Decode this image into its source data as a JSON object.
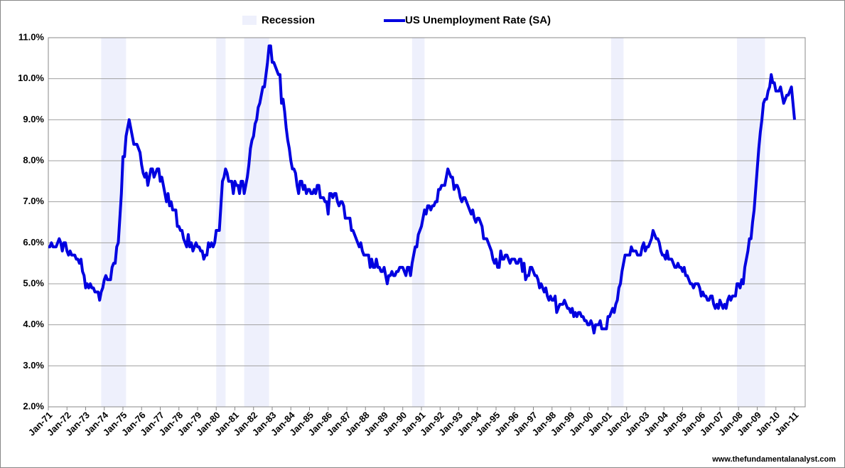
{
  "chart_data": {
    "type": "line",
    "categories": [
      "Jan-71",
      null,
      null,
      null,
      null,
      null,
      null,
      null,
      null,
      null,
      null,
      null,
      "Jan-72",
      null,
      null,
      null,
      null,
      null,
      null,
      null,
      null,
      null,
      null,
      null,
      "Jan-73",
      null,
      null,
      null,
      null,
      null,
      null,
      null,
      null,
      null,
      null,
      null,
      "Jan-74",
      null,
      null,
      null,
      null,
      null,
      null,
      null,
      null,
      null,
      null,
      null,
      "Jan-75",
      null,
      null,
      null,
      null,
      null,
      null,
      null,
      null,
      null,
      null,
      null,
      "Jan-76",
      null,
      null,
      null,
      null,
      null,
      null,
      null,
      null,
      null,
      null,
      null,
      "Jan-77",
      null,
      null,
      null,
      null,
      null,
      null,
      null,
      null,
      null,
      null,
      null,
      "Jan-78",
      null,
      null,
      null,
      null,
      null,
      null,
      null,
      null,
      null,
      null,
      null,
      "Jan-79",
      null,
      null,
      null,
      null,
      null,
      null,
      null,
      null,
      null,
      null,
      null,
      "Jan-80",
      null,
      null,
      null,
      null,
      null,
      null,
      null,
      null,
      null,
      null,
      null,
      "Jan-81",
      null,
      null,
      null,
      null,
      null,
      null,
      null,
      null,
      null,
      null,
      null,
      "Jan-82",
      null,
      null,
      null,
      null,
      null,
      null,
      null,
      null,
      null,
      null,
      null,
      "Jan-83",
      null,
      null,
      null,
      null,
      null,
      null,
      null,
      null,
      null,
      null,
      null,
      "Jan-84",
      null,
      null,
      null,
      null,
      null,
      null,
      null,
      null,
      null,
      null,
      null,
      "Jan-85",
      null,
      null,
      null,
      null,
      null,
      null,
      null,
      null,
      null,
      null,
      null,
      "Jan-86",
      null,
      null,
      null,
      null,
      null,
      null,
      null,
      null,
      null,
      null,
      null,
      "Jan-87",
      null,
      null,
      null,
      null,
      null,
      null,
      null,
      null,
      null,
      null,
      null,
      "Jan-88",
      null,
      null,
      null,
      null,
      null,
      null,
      null,
      null,
      null,
      null,
      null,
      "Jan-89",
      null,
      null,
      null,
      null,
      null,
      null,
      null,
      null,
      null,
      null,
      null,
      "Jan-90",
      null,
      null,
      null,
      null,
      null,
      null,
      null,
      null,
      null,
      null,
      null,
      "Jan-91",
      null,
      null,
      null,
      null,
      null,
      null,
      null,
      null,
      null,
      null,
      null,
      "Jan-92",
      null,
      null,
      null,
      null,
      null,
      null,
      null,
      null,
      null,
      null,
      null,
      "Jan-93",
      null,
      null,
      null,
      null,
      null,
      null,
      null,
      null,
      null,
      null,
      null,
      "Jan-94",
      null,
      null,
      null,
      null,
      null,
      null,
      null,
      null,
      null,
      null,
      null,
      "Jan-95",
      null,
      null,
      null,
      null,
      null,
      null,
      null,
      null,
      null,
      null,
      null,
      "Jan-96",
      null,
      null,
      null,
      null,
      null,
      null,
      null,
      null,
      null,
      null,
      null,
      "Jan-97",
      null,
      null,
      null,
      null,
      null,
      null,
      null,
      null,
      null,
      null,
      null,
      "Jan-98",
      null,
      null,
      null,
      null,
      null,
      null,
      null,
      null,
      null,
      null,
      null,
      "Jan-99",
      null,
      null,
      null,
      null,
      null,
      null,
      null,
      null,
      null,
      null,
      null,
      "Jan-00",
      null,
      null,
      null,
      null,
      null,
      null,
      null,
      null,
      null,
      null,
      null,
      "Jan-01",
      null,
      null,
      null,
      null,
      null,
      null,
      null,
      null,
      null,
      null,
      null,
      "Jan-02",
      null,
      null,
      null,
      null,
      null,
      null,
      null,
      null,
      null,
      null,
      null,
      "Jan-03",
      null,
      null,
      null,
      null,
      null,
      null,
      null,
      null,
      null,
      null,
      null,
      "Jan-04",
      null,
      null,
      null,
      null,
      null,
      null,
      null,
      null,
      null,
      null,
      null,
      "Jan-05",
      null,
      null,
      null,
      null,
      null,
      null,
      null,
      null,
      null,
      null,
      null,
      "Jan-06",
      null,
      null,
      null,
      null,
      null,
      null,
      null,
      null,
      null,
      null,
      null,
      "Jan-07",
      null,
      null,
      null,
      null,
      null,
      null,
      null,
      null,
      null,
      null,
      null,
      "Jan-08",
      null,
      null,
      null,
      null,
      null,
      null,
      null,
      null,
      null,
      null,
      null,
      "Jan-09",
      null,
      null,
      null,
      null,
      null,
      null,
      null,
      null,
      null,
      null,
      null,
      "Jan-10",
      null,
      null,
      null,
      null,
      null,
      null,
      null,
      null,
      null,
      null,
      null,
      "Jan-11"
    ],
    "series": [
      {
        "name": "US Unemployment  Rate (SA)",
        "color": "#0000e0",
        "values": [
          5.9,
          5.9,
          6.0,
          5.9,
          5.9,
          5.9,
          6.0,
          6.1,
          6.0,
          5.8,
          6.0,
          6.0,
          5.8,
          5.7,
          5.8,
          5.7,
          5.7,
          5.7,
          5.6,
          5.6,
          5.5,
          5.6,
          5.3,
          5.2,
          4.9,
          5.0,
          4.9,
          5.0,
          4.9,
          4.9,
          4.8,
          4.8,
          4.8,
          4.6,
          4.8,
          4.9,
          5.1,
          5.2,
          5.1,
          5.1,
          5.1,
          5.4,
          5.5,
          5.5,
          5.9,
          6.0,
          6.6,
          7.2,
          8.1,
          8.1,
          8.6,
          8.8,
          9.0,
          8.8,
          8.6,
          8.4,
          8.4,
          8.4,
          8.3,
          8.2,
          7.9,
          7.7,
          7.6,
          7.7,
          7.4,
          7.6,
          7.8,
          7.8,
          7.6,
          7.7,
          7.8,
          7.8,
          7.5,
          7.6,
          7.4,
          7.2,
          7.0,
          7.2,
          6.9,
          7.0,
          6.8,
          6.8,
          6.8,
          6.4,
          6.4,
          6.3,
          6.3,
          6.1,
          6.0,
          5.9,
          6.2,
          5.9,
          6.0,
          5.8,
          5.9,
          6.0,
          5.9,
          5.9,
          5.8,
          5.8,
          5.6,
          5.7,
          5.7,
          6.0,
          5.9,
          6.0,
          5.9,
          6.0,
          6.3,
          6.3,
          6.3,
          6.9,
          7.5,
          7.6,
          7.8,
          7.7,
          7.5,
          7.5,
          7.5,
          7.2,
          7.5,
          7.4,
          7.4,
          7.2,
          7.5,
          7.5,
          7.2,
          7.4,
          7.6,
          7.9,
          8.3,
          8.5,
          8.6,
          8.9,
          9.0,
          9.3,
          9.4,
          9.6,
          9.8,
          9.8,
          10.1,
          10.4,
          10.8,
          10.8,
          10.4,
          10.4,
          10.3,
          10.2,
          10.1,
          10.1,
          9.4,
          9.5,
          9.2,
          8.8,
          8.5,
          8.3,
          8.0,
          7.8,
          7.8,
          7.7,
          7.4,
          7.2,
          7.5,
          7.5,
          7.3,
          7.4,
          7.2,
          7.3,
          7.3,
          7.2,
          7.2,
          7.3,
          7.2,
          7.4,
          7.4,
          7.1,
          7.1,
          7.1,
          7.0,
          7.0,
          6.7,
          7.2,
          7.2,
          7.1,
          7.2,
          7.2,
          7.0,
          6.9,
          7.0,
          7.0,
          6.9,
          6.6,
          6.6,
          6.6,
          6.6,
          6.3,
          6.3,
          6.2,
          6.1,
          6.0,
          5.9,
          6.0,
          5.8,
          5.7,
          5.7,
          5.7,
          5.7,
          5.4,
          5.6,
          5.4,
          5.4,
          5.6,
          5.4,
          5.4,
          5.3,
          5.3,
          5.4,
          5.2,
          5.0,
          5.2,
          5.2,
          5.3,
          5.2,
          5.2,
          5.3,
          5.3,
          5.4,
          5.4,
          5.4,
          5.3,
          5.2,
          5.4,
          5.4,
          5.2,
          5.5,
          5.7,
          5.9,
          5.9,
          6.2,
          6.3,
          6.4,
          6.6,
          6.8,
          6.7,
          6.9,
          6.9,
          6.8,
          6.9,
          6.9,
          7.0,
          7.0,
          7.3,
          7.3,
          7.4,
          7.4,
          7.4,
          7.6,
          7.8,
          7.7,
          7.6,
          7.6,
          7.3,
          7.4,
          7.4,
          7.3,
          7.1,
          7.0,
          7.1,
          7.1,
          7.0,
          6.9,
          6.8,
          6.7,
          6.8,
          6.6,
          6.5,
          6.6,
          6.6,
          6.5,
          6.4,
          6.1,
          6.1,
          6.1,
          6.0,
          5.9,
          5.8,
          5.6,
          5.5,
          5.6,
          5.4,
          5.4,
          5.8,
          5.6,
          5.6,
          5.7,
          5.7,
          5.6,
          5.5,
          5.6,
          5.6,
          5.6,
          5.5,
          5.5,
          5.6,
          5.6,
          5.3,
          5.5,
          5.1,
          5.2,
          5.2,
          5.4,
          5.4,
          5.3,
          5.2,
          5.2,
          5.1,
          4.9,
          5.0,
          4.9,
          4.8,
          4.9,
          4.7,
          4.6,
          4.7,
          4.6,
          4.6,
          4.7,
          4.3,
          4.4,
          4.5,
          4.5,
          4.5,
          4.6,
          4.5,
          4.4,
          4.4,
          4.3,
          4.4,
          4.2,
          4.3,
          4.2,
          4.3,
          4.3,
          4.2,
          4.2,
          4.1,
          4.1,
          4.0,
          4.0,
          4.1,
          4.0,
          3.8,
          4.0,
          4.0,
          4.0,
          4.1,
          3.9,
          3.9,
          3.9,
          3.9,
          4.2,
          4.2,
          4.3,
          4.4,
          4.3,
          4.5,
          4.6,
          4.9,
          5.0,
          5.3,
          5.5,
          5.7,
          5.7,
          5.7,
          5.7,
          5.9,
          5.8,
          5.8,
          5.8,
          5.7,
          5.7,
          5.7,
          5.9,
          6.0,
          5.8,
          5.9,
          5.9,
          6.0,
          6.1,
          6.3,
          6.2,
          6.1,
          6.1,
          6.0,
          5.8,
          5.7,
          5.7,
          5.6,
          5.8,
          5.6,
          5.6,
          5.6,
          5.5,
          5.4,
          5.4,
          5.5,
          5.4,
          5.4,
          5.3,
          5.4,
          5.2,
          5.2,
          5.1,
          5.0,
          5.0,
          4.9,
          5.0,
          5.0,
          5.0,
          4.9,
          4.7,
          4.8,
          4.7,
          4.7,
          4.6,
          4.6,
          4.7,
          4.7,
          4.5,
          4.4,
          4.5,
          4.4,
          4.6,
          4.5,
          4.4,
          4.5,
          4.4,
          4.6,
          4.7,
          4.6,
          4.7,
          4.7,
          4.7,
          5.0,
          5.0,
          4.9,
          5.1,
          5.0,
          5.4,
          5.6,
          5.8,
          6.1,
          6.1,
          6.5,
          6.8,
          7.3,
          7.8,
          8.3,
          8.7,
          9.0,
          9.4,
          9.5,
          9.5,
          9.7,
          9.8,
          10.1,
          9.9,
          9.9,
          9.7,
          9.7,
          9.7,
          9.8,
          9.6,
          9.4,
          9.5,
          9.6,
          9.6,
          9.7,
          9.8,
          9.4,
          9.0
        ]
      }
    ],
    "recession": {
      "name": "Recession",
      "color": "#eef0fc",
      "periods": [
        [
          34,
          50
        ],
        [
          108,
          114
        ],
        [
          126,
          142
        ],
        [
          234,
          242
        ],
        [
          362,
          370
        ],
        [
          443,
          461
        ]
      ]
    },
    "ylim": [
      2,
      11
    ],
    "yticks": [
      {
        "value": 2,
        "label": "2.0%"
      },
      {
        "value": 3,
        "label": "3.0%"
      },
      {
        "value": 4,
        "label": "4.0%"
      },
      {
        "value": 5,
        "label": "5.0%"
      },
      {
        "value": 6,
        "label": "6.0%"
      },
      {
        "value": 7,
        "label": "7.0%"
      },
      {
        "value": 8,
        "label": "8.0%"
      },
      {
        "value": 9,
        "label": "9.0%"
      },
      {
        "value": 10,
        "label": "10.0%"
      },
      {
        "value": 11,
        "label": "11.0%"
      }
    ],
    "grid": true,
    "source": "www.thefundamentalanalyst.com"
  }
}
